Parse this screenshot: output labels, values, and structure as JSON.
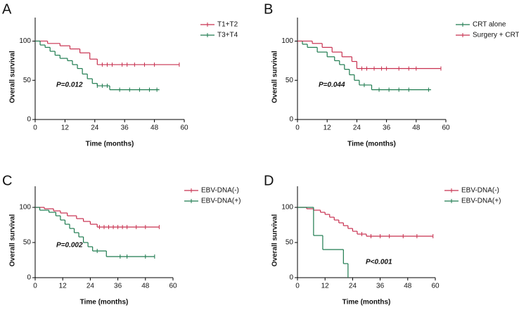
{
  "chart_data": [
    {
      "type": "line",
      "step": true,
      "panel_label": "A",
      "annotation": "P=0.012",
      "x_label": "Time (months)",
      "y_label": "Overall survival",
      "xlim": [
        0,
        60
      ],
      "xticks": [
        0,
        12,
        24,
        36,
        48,
        60
      ],
      "ylim": [
        0,
        130
      ],
      "yticks": [
        0,
        50,
        100
      ],
      "series": [
        {
          "name": "T1+T2",
          "color": "#c8304f",
          "x": [
            0,
            5,
            10,
            14,
            18,
            22,
            25,
            58
          ],
          "values": [
            100,
            97,
            94,
            90,
            85,
            77,
            70,
            70
          ],
          "censored": {
            "x": [
              27,
              29,
              31,
              35,
              37,
              40,
              44,
              48,
              58
            ],
            "values": [
              70,
              70,
              70,
              70,
              70,
              70,
              70,
              70,
              70
            ]
          }
        },
        {
          "name": "T3+T4",
          "color": "#1e7b4f",
          "x": [
            0,
            2,
            4,
            6,
            8,
            10,
            13,
            15,
            17,
            19,
            21,
            23,
            25,
            30,
            50
          ],
          "values": [
            100,
            95,
            92,
            87,
            82,
            78,
            75,
            70,
            65,
            58,
            52,
            46,
            43,
            38,
            38
          ],
          "censored": {
            "x": [
              25,
              27,
              29,
              34,
              38,
              42,
              46,
              49
            ],
            "values": [
              43,
              43,
              43,
              38,
              38,
              38,
              38,
              38
            ]
          }
        }
      ]
    },
    {
      "type": "line",
      "step": true,
      "panel_label": "B",
      "annotation": "P=0.044",
      "x_label": "Time (months)",
      "y_label": "Overall survival",
      "xlim": [
        0,
        60
      ],
      "xticks": [
        0,
        12,
        24,
        36,
        48,
        60
      ],
      "ylim": [
        0,
        130
      ],
      "yticks": [
        0,
        50,
        100
      ],
      "series": [
        {
          "name": "CRT alone",
          "color": "#1e7b4f",
          "x": [
            0,
            2,
            4,
            8,
            12,
            15,
            17,
            19,
            21,
            23,
            25,
            30,
            54
          ],
          "values": [
            100,
            96,
            92,
            86,
            80,
            75,
            70,
            64,
            57,
            50,
            44,
            38,
            38
          ],
          "censored": {
            "x": [
              27,
              33,
              37,
              41,
              45,
              53
            ],
            "values": [
              44,
              38,
              38,
              38,
              38,
              38
            ]
          }
        },
        {
          "name": "Surgery + CRT",
          "color": "#c8304f",
          "x": [
            0,
            6,
            10,
            14,
            18,
            22,
            24,
            58
          ],
          "values": [
            100,
            97,
            92,
            86,
            80,
            74,
            65,
            65
          ],
          "censored": {
            "x": [
              26,
              28,
              31,
              34,
              36,
              41,
              45,
              48,
              58
            ],
            "values": [
              65,
              65,
              65,
              65,
              65,
              65,
              65,
              65,
              65
            ]
          }
        }
      ]
    },
    {
      "type": "line",
      "step": true,
      "panel_label": "C",
      "annotation": "P=0.002",
      "x_label": "Time (months)",
      "y_label": "Overall survival",
      "xlim": [
        0,
        60
      ],
      "xticks": [
        0,
        12,
        24,
        36,
        48,
        60
      ],
      "ylim": [
        0,
        130
      ],
      "yticks": [
        0,
        50,
        100
      ],
      "series": [
        {
          "name": "EBV-DNA(-)",
          "color": "#c8304f",
          "x": [
            0,
            4,
            8,
            11,
            14,
            18,
            21,
            24,
            27,
            54
          ],
          "values": [
            100,
            98,
            95,
            92,
            88,
            84,
            80,
            76,
            72,
            72
          ],
          "censored": {
            "x": [
              28,
              30,
              32,
              34,
              36,
              38,
              40,
              44,
              48,
              54
            ],
            "values": [
              72,
              72,
              72,
              72,
              72,
              72,
              72,
              72,
              72,
              72
            ]
          }
        },
        {
          "name": "EBV-DNA(+)",
          "color": "#1e7b4f",
          "x": [
            0,
            2,
            6,
            9,
            11,
            13,
            15,
            17,
            19,
            21,
            23,
            25,
            31,
            52
          ],
          "values": [
            100,
            96,
            93,
            88,
            82,
            76,
            70,
            64,
            58,
            50,
            44,
            38,
            30,
            30
          ],
          "censored": {
            "x": [
              27,
              37,
              40,
              48,
              52
            ],
            "values": [
              38,
              30,
              30,
              30,
              30
            ]
          }
        }
      ]
    },
    {
      "type": "line",
      "step": true,
      "panel_label": "D",
      "annotation": "P<0.001",
      "x_label": "Time (months)",
      "y_label": "Overall survival",
      "xlim": [
        0,
        60
      ],
      "xticks": [
        0,
        12,
        24,
        36,
        48,
        60
      ],
      "ylim": [
        0,
        130
      ],
      "yticks": [
        0,
        50,
        100
      ],
      "series": [
        {
          "name": "EBV-DNA(-)",
          "color": "#c8304f",
          "x": [
            0,
            4,
            7,
            10,
            12,
            14,
            16,
            18,
            20,
            22,
            24,
            26,
            30,
            59
          ],
          "values": [
            100,
            98,
            96,
            93,
            90,
            86,
            82,
            78,
            74,
            70,
            66,
            62,
            59,
            59
          ],
          "censored": {
            "x": [
              28,
              32,
              36,
              40,
              46,
              52,
              59
            ],
            "values": [
              62,
              59,
              59,
              59,
              59,
              59,
              59
            ]
          }
        },
        {
          "name": "EBV-DNA(+)",
          "color": "#1e7b4f",
          "x": [
            0,
            7,
            11,
            20,
            22
          ],
          "values": [
            100,
            60,
            40,
            20,
            0
          ],
          "censored": {
            "x": [],
            "values": []
          }
        }
      ]
    }
  ]
}
